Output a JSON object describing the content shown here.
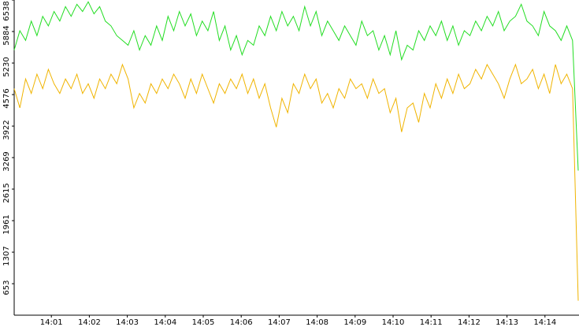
{
  "chart_data": {
    "type": "line",
    "xlim": [
      "14:00",
      "14:15"
    ],
    "xticks": [
      "14:01",
      "14:02",
      "14:03",
      "14:04",
      "14:05",
      "14:06",
      "14:07",
      "14:08",
      "14:09",
      "14:10",
      "14:11",
      "14:12",
      "14:13",
      "14:14"
    ],
    "ylim": [
      0,
      6538
    ],
    "yticks": [
      653,
      1307,
      1961,
      2615,
      3269,
      3922,
      4576,
      5230,
      5884,
      6538
    ],
    "series": [
      {
        "color": "#22dd22",
        "values": [
          5500,
          5900,
          5700,
          6100,
          5800,
          6200,
          6000,
          6300,
          6100,
          6400,
          6200,
          6450,
          6300,
          6500,
          6250,
          6400,
          6100,
          6000,
          5800,
          5700,
          5600,
          5900,
          5500,
          5800,
          5600,
          6000,
          5700,
          6200,
          5900,
          6300,
          6000,
          6250,
          5800,
          6100,
          5900,
          6300,
          5700,
          6000,
          5500,
          5800,
          5400,
          5700,
          5600,
          6000,
          5800,
          6200,
          5900,
          6300,
          6000,
          6200,
          5900,
          6400,
          6000,
          6300,
          5800,
          6100,
          5900,
          5700,
          6000,
          5800,
          5600,
          6100,
          5800,
          5900,
          5500,
          5800,
          5400,
          5900,
          5300,
          5600,
          5500,
          5900,
          5700,
          6000,
          5800,
          6100,
          5700,
          6000,
          5600,
          5900,
          5800,
          6100,
          5900,
          6200,
          6000,
          6300,
          5900,
          6100,
          6200,
          6450,
          6100,
          6000,
          5800,
          6300,
          6000,
          5900,
          5700,
          6000,
          5700,
          3000
        ]
      },
      {
        "color": "#f0b400",
        "values": [
          4700,
          4300,
          4900,
          4600,
          5000,
          4700,
          5100,
          4800,
          4600,
          4900,
          4700,
          5000,
          4600,
          4800,
          4500,
          4900,
          4700,
          5000,
          4800,
          5200,
          4900,
          4300,
          4600,
          4400,
          4800,
          4600,
          4900,
          4700,
          5000,
          4800,
          4500,
          4900,
          4600,
          5000,
          4700,
          4400,
          4800,
          4600,
          4900,
          4700,
          5000,
          4600,
          4900,
          4500,
          4800,
          4300,
          3900,
          4500,
          4200,
          4800,
          4600,
          5000,
          4700,
          4900,
          4400,
          4600,
          4300,
          4700,
          4500,
          4900,
          4700,
          4800,
          4500,
          4900,
          4600,
          4700,
          4200,
          4500,
          3800,
          4300,
          4400,
          4000,
          4600,
          4300,
          4800,
          4500,
          4900,
          4600,
          5000,
          4700,
          4800,
          5100,
          4900,
          5200,
          5000,
          4800,
          4500,
          4900,
          5200,
          4800,
          4900,
          5100,
          4700,
          5000,
          4600,
          5200,
          4800,
          5000,
          4700,
          300
        ]
      }
    ]
  }
}
